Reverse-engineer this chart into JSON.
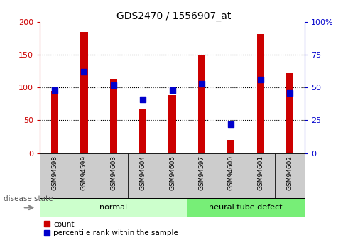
{
  "title": "GDS2470 / 1556907_at",
  "samples": [
    "GSM94598",
    "GSM94599",
    "GSM94603",
    "GSM94604",
    "GSM94605",
    "GSM94597",
    "GSM94600",
    "GSM94601",
    "GSM94602"
  ],
  "count_values": [
    95,
    185,
    113,
    68,
    88,
    150,
    20,
    182,
    122
  ],
  "percentile_values": [
    48,
    62,
    52,
    41,
    48,
    53,
    22,
    56,
    46
  ],
  "bar_color": "#cc0000",
  "dot_color": "#0000cc",
  "left_ylim": [
    0,
    200
  ],
  "right_ylim": [
    0,
    100
  ],
  "left_yticks": [
    0,
    50,
    100,
    150,
    200
  ],
  "right_yticks": [
    0,
    25,
    50,
    75,
    100
  ],
  "right_yticklabels": [
    "0",
    "25",
    "50",
    "75",
    "100%"
  ],
  "normal_indices": [
    0,
    1,
    2,
    3,
    4
  ],
  "defect_indices": [
    5,
    6,
    7,
    8
  ],
  "normal_label": "normal",
  "defect_label": "neural tube defect",
  "disease_state_label": "disease state",
  "normal_color": "#ccffcc",
  "defect_color": "#77ee77",
  "legend_count_label": "count",
  "legend_percentile_label": "percentile rank within the sample",
  "tick_bg_color": "#cccccc",
  "bar_width": 0.25,
  "dot_size": 28,
  "grid_yticks": [
    50,
    100,
    150
  ]
}
